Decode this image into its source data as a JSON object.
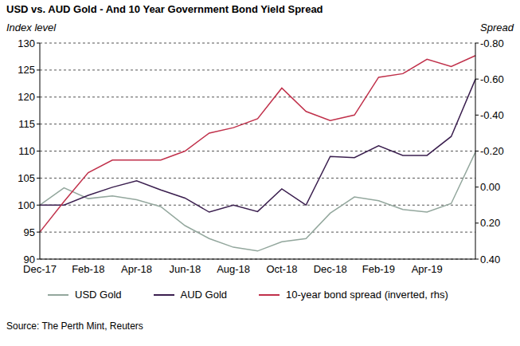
{
  "chart_data": {
    "type": "line",
    "title": "USD vs. AUD Gold - And 10 Year Government Bond Yield Spread",
    "ylabel": "Index level",
    "y2label": "Spread",
    "source": "Source: The Perth Mint, Reuters",
    "categories": [
      "Dec-17",
      null,
      "Feb-18",
      null,
      "Apr-18",
      null,
      "Jun-18",
      null,
      "Aug-18",
      null,
      "Oct-18",
      null,
      "Dec-18",
      null,
      "Feb-19",
      null,
      "Apr-19",
      null,
      null
    ],
    "ylim": [
      90,
      130
    ],
    "yticks": [
      90,
      95,
      100,
      105,
      110,
      115,
      120,
      125,
      130
    ],
    "y2lim": [
      0.4,
      -0.8
    ],
    "y2ticks": [
      {
        "value": -0.8,
        "label": "-0.80"
      },
      {
        "value": -0.6,
        "label": "-0.60"
      },
      {
        "value": -0.4,
        "label": "-0.40"
      },
      {
        "value": -0.2,
        "label": "-0.20"
      },
      {
        "value": 0,
        "label": "0.00"
      },
      {
        "value": 0.2,
        "label": "0.20"
      },
      {
        "value": 0.4,
        "label": "0.40"
      }
    ],
    "grid": true,
    "legend": "bottom",
    "series": [
      {
        "name": "USD Gold",
        "color": "#93a79d",
        "values": [
          100,
          103.2,
          101.2,
          101.7,
          101,
          99.7,
          96.2,
          93.8,
          92.2,
          91.5,
          93.2,
          93.8,
          98.5,
          101.5,
          100.8,
          99.2,
          98.7,
          100.3,
          109.8
        ]
      },
      {
        "name": "AUD Gold",
        "color": "#3b1f4f",
        "values": [
          100,
          100,
          101.8,
          103.3,
          104.5,
          102.8,
          101.3,
          98.7,
          100,
          98.8,
          103,
          100,
          109,
          108.8,
          111,
          109.2,
          109.2,
          112.7,
          123.3
        ]
      },
      {
        "name": "10-year bond spread (inverted, rhs)",
        "color": "#c0304a",
        "axis": "y2",
        "values": [
          0.25,
          0.08,
          -0.08,
          -0.15,
          -0.15,
          -0.15,
          -0.2,
          -0.3,
          -0.33,
          -0.38,
          -0.55,
          -0.42,
          -0.37,
          -0.4,
          -0.61,
          -0.63,
          -0.71,
          -0.67,
          -0.73
        ]
      }
    ]
  }
}
